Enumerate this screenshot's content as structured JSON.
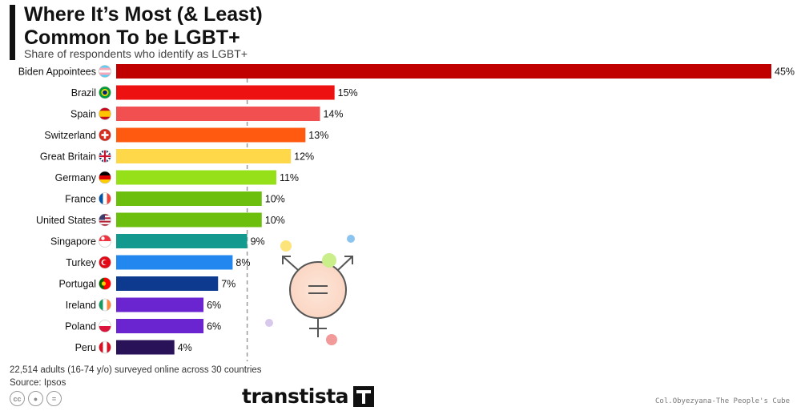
{
  "header": {
    "title": "Where It’s Most (& Least)\nCommon To be LGBT+",
    "subtitle": "Share of respondents who identify as LGBT+"
  },
  "chart_data": {
    "type": "bar",
    "orientation": "horizontal",
    "title": "Where It’s Most (& Least) Common To be LGBT+",
    "subtitle": "Share of respondents who identify as LGBT+",
    "categories": [
      "Biden Appointees",
      "Brazil",
      "Spain",
      "Switzerland",
      "Great Britain",
      "Germany",
      "France",
      "United States",
      "Singapore",
      "Turkey",
      "Portugal",
      "Ireland",
      "Poland",
      "Peru"
    ],
    "values": [
      45,
      15,
      14,
      13,
      12,
      11,
      10,
      10,
      9,
      8,
      7,
      6,
      6,
      4
    ],
    "value_labels": [
      "45%",
      "15%",
      "14%",
      "13%",
      "12%",
      "11%",
      "10%",
      "10%",
      "9%",
      "8%",
      "7%",
      "6%",
      "6%",
      "4%"
    ],
    "bar_colors": [
      "#c00000",
      "#ee1111",
      "#f25050",
      "#ff5a10",
      "#ffd84a",
      "#96e01a",
      "#6cbf0c",
      "#6cbf0c",
      "#13998d",
      "#2287ee",
      "#0d3a8f",
      "#6a24d0",
      "#6a24d0",
      "#2a1258"
    ],
    "reference_line": 9,
    "xlim": [
      0,
      45
    ],
    "grid": false,
    "legend": "none"
  },
  "flag_icons": [
    "transgender-flag-icon",
    "brazil-flag-icon",
    "spain-flag-icon",
    "switzerland-flag-icon",
    "uk-flag-icon",
    "germany-flag-icon",
    "france-flag-icon",
    "usa-flag-icon",
    "singapore-flag-icon",
    "turkey-flag-icon",
    "portugal-flag-icon",
    "ireland-flag-icon",
    "poland-flag-icon",
    "peru-flag-icon"
  ],
  "footer": {
    "note": "22,514 adults (16-74 y/o) surveyed online across 30 countries",
    "source": "Source: Ipsos",
    "cc_icons": [
      "cc",
      "by",
      "nd"
    ],
    "brand": "transtista",
    "credit": "Col.Obyezyana-The People's Cube"
  }
}
